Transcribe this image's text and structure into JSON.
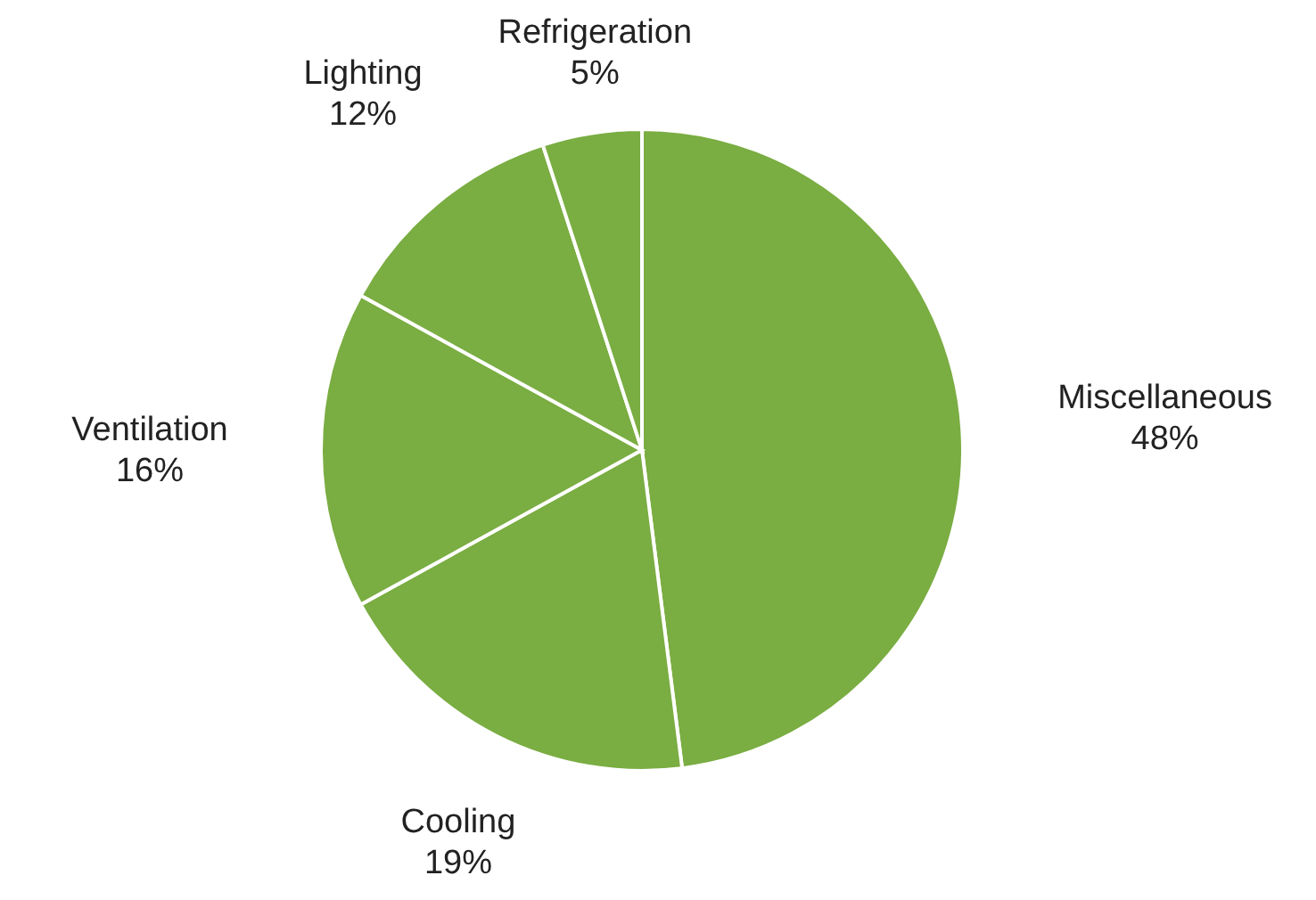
{
  "chart_data": {
    "type": "pie",
    "categories": [
      "Miscellaneous",
      "Cooling",
      "Ventilation",
      "Lighting",
      "Refrigeration"
    ],
    "values": [
      48,
      19,
      16,
      12,
      5
    ],
    "value_labels": [
      "48%",
      "19%",
      "16%",
      "12%",
      "5%"
    ],
    "colors": [
      "#7aad42",
      "#7aad42",
      "#7aad42",
      "#7aad42",
      "#7aad42"
    ]
  }
}
